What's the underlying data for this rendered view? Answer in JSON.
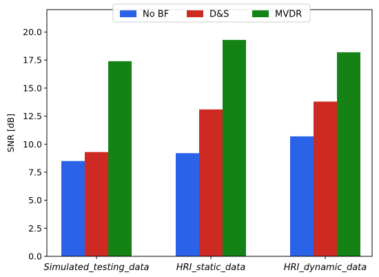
{
  "chart_data": {
    "type": "bar",
    "title": "",
    "xlabel": "",
    "ylabel": "SNR [dB]",
    "categories": [
      "Simulated_testing_data",
      "HRI_static_data",
      "HRI_dynamic_data"
    ],
    "series": [
      {
        "name": "No BF",
        "color": "#2a62e8",
        "values": [
          8.5,
          9.2,
          10.7
        ]
      },
      {
        "name": "D&S",
        "color": "#cc2a22",
        "values": [
          9.3,
          13.1,
          13.8
        ]
      },
      {
        "name": "MVDR",
        "color": "#148214",
        "values": [
          17.4,
          19.3,
          18.2
        ]
      }
    ],
    "ylim": [
      0,
      22
    ],
    "yticks": [
      "0.0",
      "2.5",
      "5.0",
      "7.5",
      "10.0",
      "12.5",
      "15.0",
      "17.5",
      "20.0"
    ],
    "grid": false,
    "legend_position": "top-center"
  }
}
